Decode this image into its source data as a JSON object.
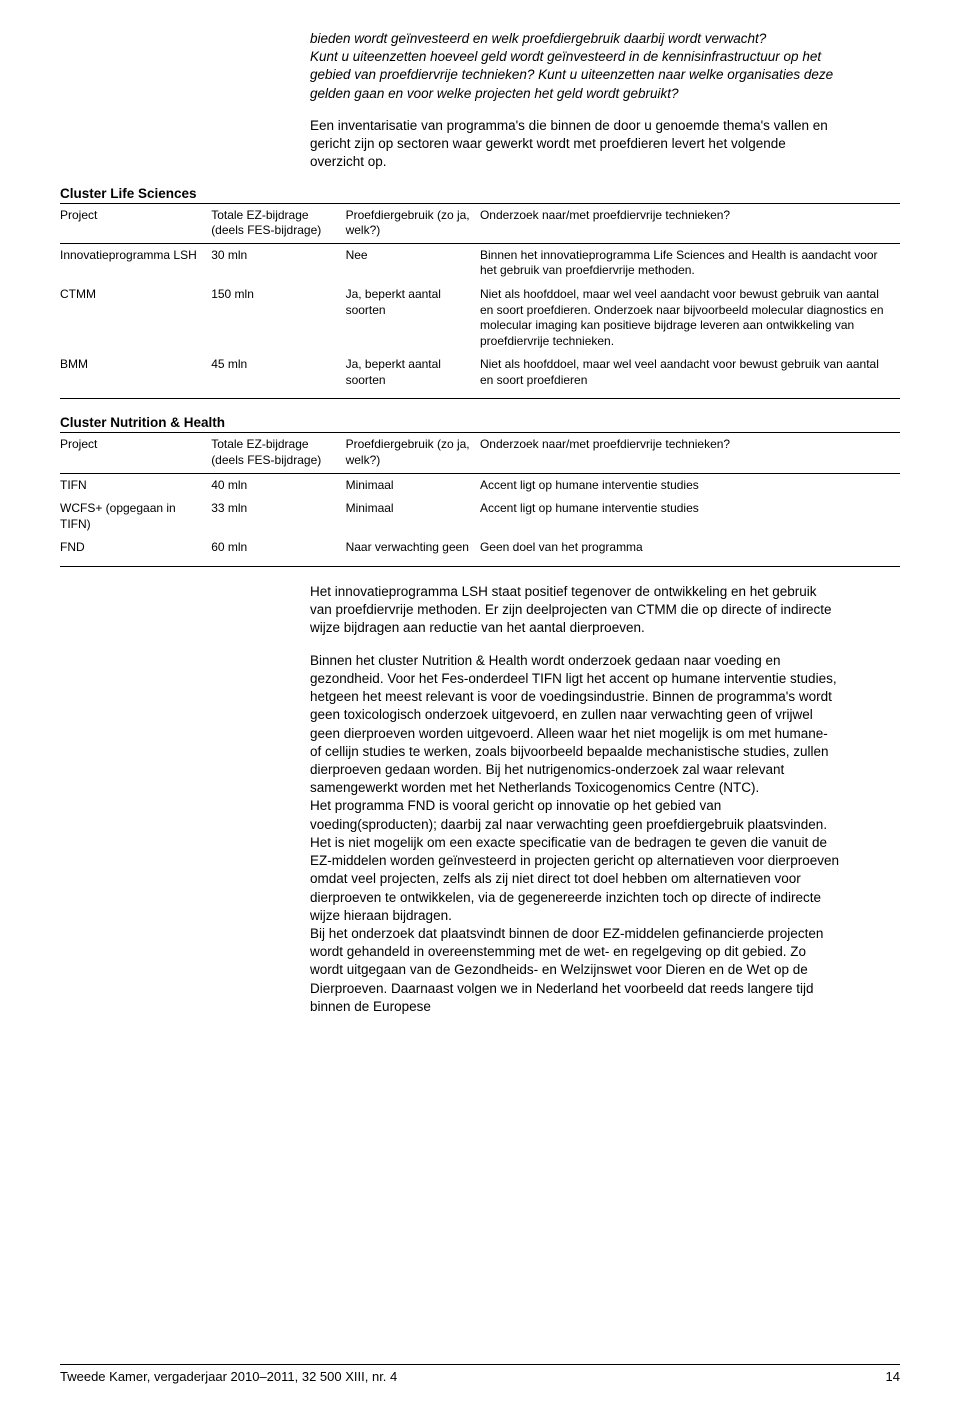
{
  "intro": {
    "italic_q": "bieden wordt geïnvesteerd en welk proefdiergebruik daarbij wordt verwacht?\nKunt u uiteenzetten hoeveel geld wordt geïnvesteerd in de kennisinfrastructuur op het gebied van proefdiervrije technieken? Kunt u uiteenzetten naar welke organisaties deze gelden gaan en voor welke projecten het geld wordt gebruikt?",
    "p1": "Een inventarisatie van programma's die binnen de door u genoemde thema's vallen en gericht zijn op sectoren waar gewerkt wordt met proefdieren levert het volgende overzicht op."
  },
  "table1": {
    "title": "Cluster Life Sciences",
    "headers": {
      "project": "Project",
      "budget": "Totale EZ-bijdrage (deels FES-bijdrage)",
      "use": "Proefdiergebruik (zo ja, welk?)",
      "notes": "Onderzoek naar/met proefdiervrije technieken?"
    },
    "rows": [
      {
        "project": "Innovatieprogramma LSH",
        "budget": "30 mln",
        "use": "Nee",
        "notes": "Binnen het innovatieprogramma Life Sciences and Health is aandacht voor het gebruik van proefdiervrije methoden."
      },
      {
        "project": "CTMM",
        "budget": "150 mln",
        "use": "Ja, beperkt aantal soorten",
        "notes": "Niet als hoofddoel, maar wel veel aandacht voor bewust gebruik van aantal en soort proefdieren. Onderzoek naar bijvoorbeeld molecular diagnostics en molecular imaging kan positieve bijdrage leveren aan ontwikkeling van proefdiervrije technieken."
      },
      {
        "project": "BMM",
        "budget": "45 mln",
        "use": "Ja, beperkt aantal soorten",
        "notes": "Niet als hoofddoel, maar wel veel aandacht voor bewust gebruik van aantal en soort proefdieren"
      }
    ]
  },
  "table2": {
    "title": "Cluster Nutrition & Health",
    "headers": {
      "project": "Project",
      "budget": "Totale EZ-bijdrage (deels FES-bijdrage)",
      "use": "Proefdiergebruik (zo ja, welk?)",
      "notes": "Onderzoek naar/met proefdiervrije technieken?"
    },
    "rows": [
      {
        "project": "TIFN",
        "budget": "40 mln",
        "use": "Minimaal",
        "notes": "Accent ligt op humane interventie studies"
      },
      {
        "project": "WCFS+ (opgegaan in TIFN)",
        "budget": "33 mln",
        "use": "Minimaal",
        "notes": "Accent ligt op humane interventie studies"
      },
      {
        "project": "FND",
        "budget": "60 mln",
        "use": "Naar verwachting geen",
        "notes": "Geen doel van het programma"
      }
    ]
  },
  "body": {
    "p2": "Het innovatieprogramma LSH staat positief tegenover de ontwikkeling en het gebruik van proefdiervrije methoden. Er zijn deelprojecten van CTMM die op directe of indirecte wijze bijdragen aan reductie van het aantal dierproeven.",
    "p3a": "Binnen het cluster Nutrition & Health wordt onderzoek gedaan naar voeding en gezondheid. Voor het Fes-onderdeel TIFN ligt het accent op humane interventie studies, hetgeen het meest relevant is voor de voedingsindustrie. Binnen de programma's wordt geen toxicologisch onderzoek uitgevoerd, en zullen naar verwachting geen of vrijwel geen dierproeven worden uitgevoerd. Alleen waar het niet mogelijk is om met humane- of cellijn studies te werken, zoals bijvoorbeeld bepaalde mechanistische studies, zullen dierproeven gedaan worden. Bij het nutrigenomics-onderzoek zal waar relevant samengewerkt worden met het Netherlands Toxicogenomics Centre (NTC).",
    "p3b": "Het programma FND is vooral gericht op innovatie op het gebied van voeding(sproducten); daarbij zal naar verwachting geen proefdiergebruik plaatsvinden.",
    "p3c": "Het is niet mogelijk om een exacte specificatie van de bedragen te geven die vanuit de EZ-middelen worden geïnvesteerd in projecten gericht op alternatieven voor dierproeven omdat veel projecten, zelfs als zij niet direct tot doel hebben om alternatieven voor dierproeven te ontwikkelen, via de gegenereerde inzichten toch op directe of indirecte wijze hieraan bijdragen.",
    "p3d": "Bij het onderzoek dat plaatsvindt binnen de door EZ-middelen gefinancierde projecten wordt gehandeld in overeenstemming met de wet- en regelgeving op dit gebied. Zo wordt uitgegaan van de Gezondheids- en Welzijnswet voor Dieren en de Wet op de Dierproeven. Daarnaast volgen we in Nederland het voorbeeld dat reeds langere tijd binnen de Europese"
  },
  "footer": {
    "ref": "Tweede Kamer, vergaderjaar 2010–2011, 32 500 XIII, nr. 4",
    "page": "14"
  }
}
